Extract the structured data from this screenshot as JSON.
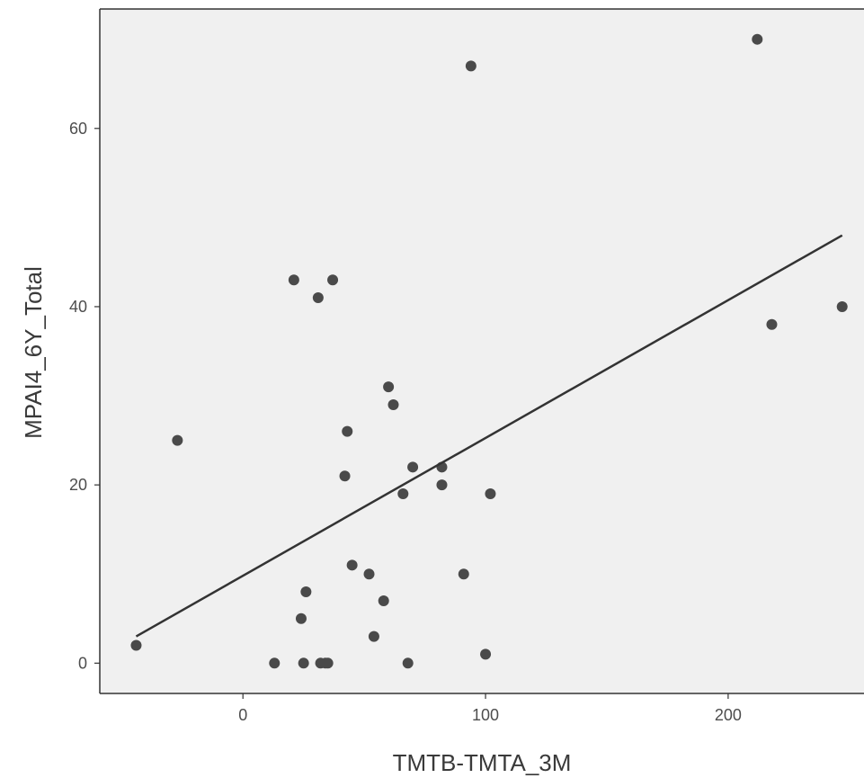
{
  "chart_data": {
    "type": "scatter",
    "title": "",
    "xlabel": "TMTB-TMTA_3M",
    "ylabel": "MPAI4_6Y_Total",
    "xlim": [
      -59,
      256
    ],
    "ylim": [
      -3.4,
      73.4
    ],
    "xticks": [
      0,
      100,
      200
    ],
    "yticks": [
      0,
      20,
      40,
      60
    ],
    "grid": false,
    "legend": "none",
    "colors": {
      "panel": "#f0f0f0",
      "point": "#4a4a4a",
      "line": "#333333",
      "axis": "#333333"
    },
    "points": [
      {
        "x": -44,
        "y": 2
      },
      {
        "x": -27,
        "y": 25
      },
      {
        "x": 13,
        "y": 0
      },
      {
        "x": 21,
        "y": 43
      },
      {
        "x": 24,
        "y": 5
      },
      {
        "x": 25,
        "y": 0
      },
      {
        "x": 26,
        "y": 8
      },
      {
        "x": 31,
        "y": 41
      },
      {
        "x": 32,
        "y": 0
      },
      {
        "x": 34,
        "y": 0
      },
      {
        "x": 35,
        "y": 0
      },
      {
        "x": 37,
        "y": 43
      },
      {
        "x": 42,
        "y": 21
      },
      {
        "x": 43,
        "y": 26
      },
      {
        "x": 45,
        "y": 11
      },
      {
        "x": 52,
        "y": 10
      },
      {
        "x": 54,
        "y": 3
      },
      {
        "x": 58,
        "y": 7
      },
      {
        "x": 60,
        "y": 31
      },
      {
        "x": 62,
        "y": 29
      },
      {
        "x": 66,
        "y": 19
      },
      {
        "x": 68,
        "y": 0
      },
      {
        "x": 70,
        "y": 22
      },
      {
        "x": 82,
        "y": 22
      },
      {
        "x": 82,
        "y": 20
      },
      {
        "x": 91,
        "y": 10
      },
      {
        "x": 94,
        "y": 67
      },
      {
        "x": 100,
        "y": 1
      },
      {
        "x": 102,
        "y": 19
      },
      {
        "x": 212,
        "y": 70
      },
      {
        "x": 218,
        "y": 38
      },
      {
        "x": 247,
        "y": 40
      }
    ],
    "trendline": {
      "x": [
        -44,
        247
      ],
      "y": [
        3,
        48
      ]
    }
  }
}
